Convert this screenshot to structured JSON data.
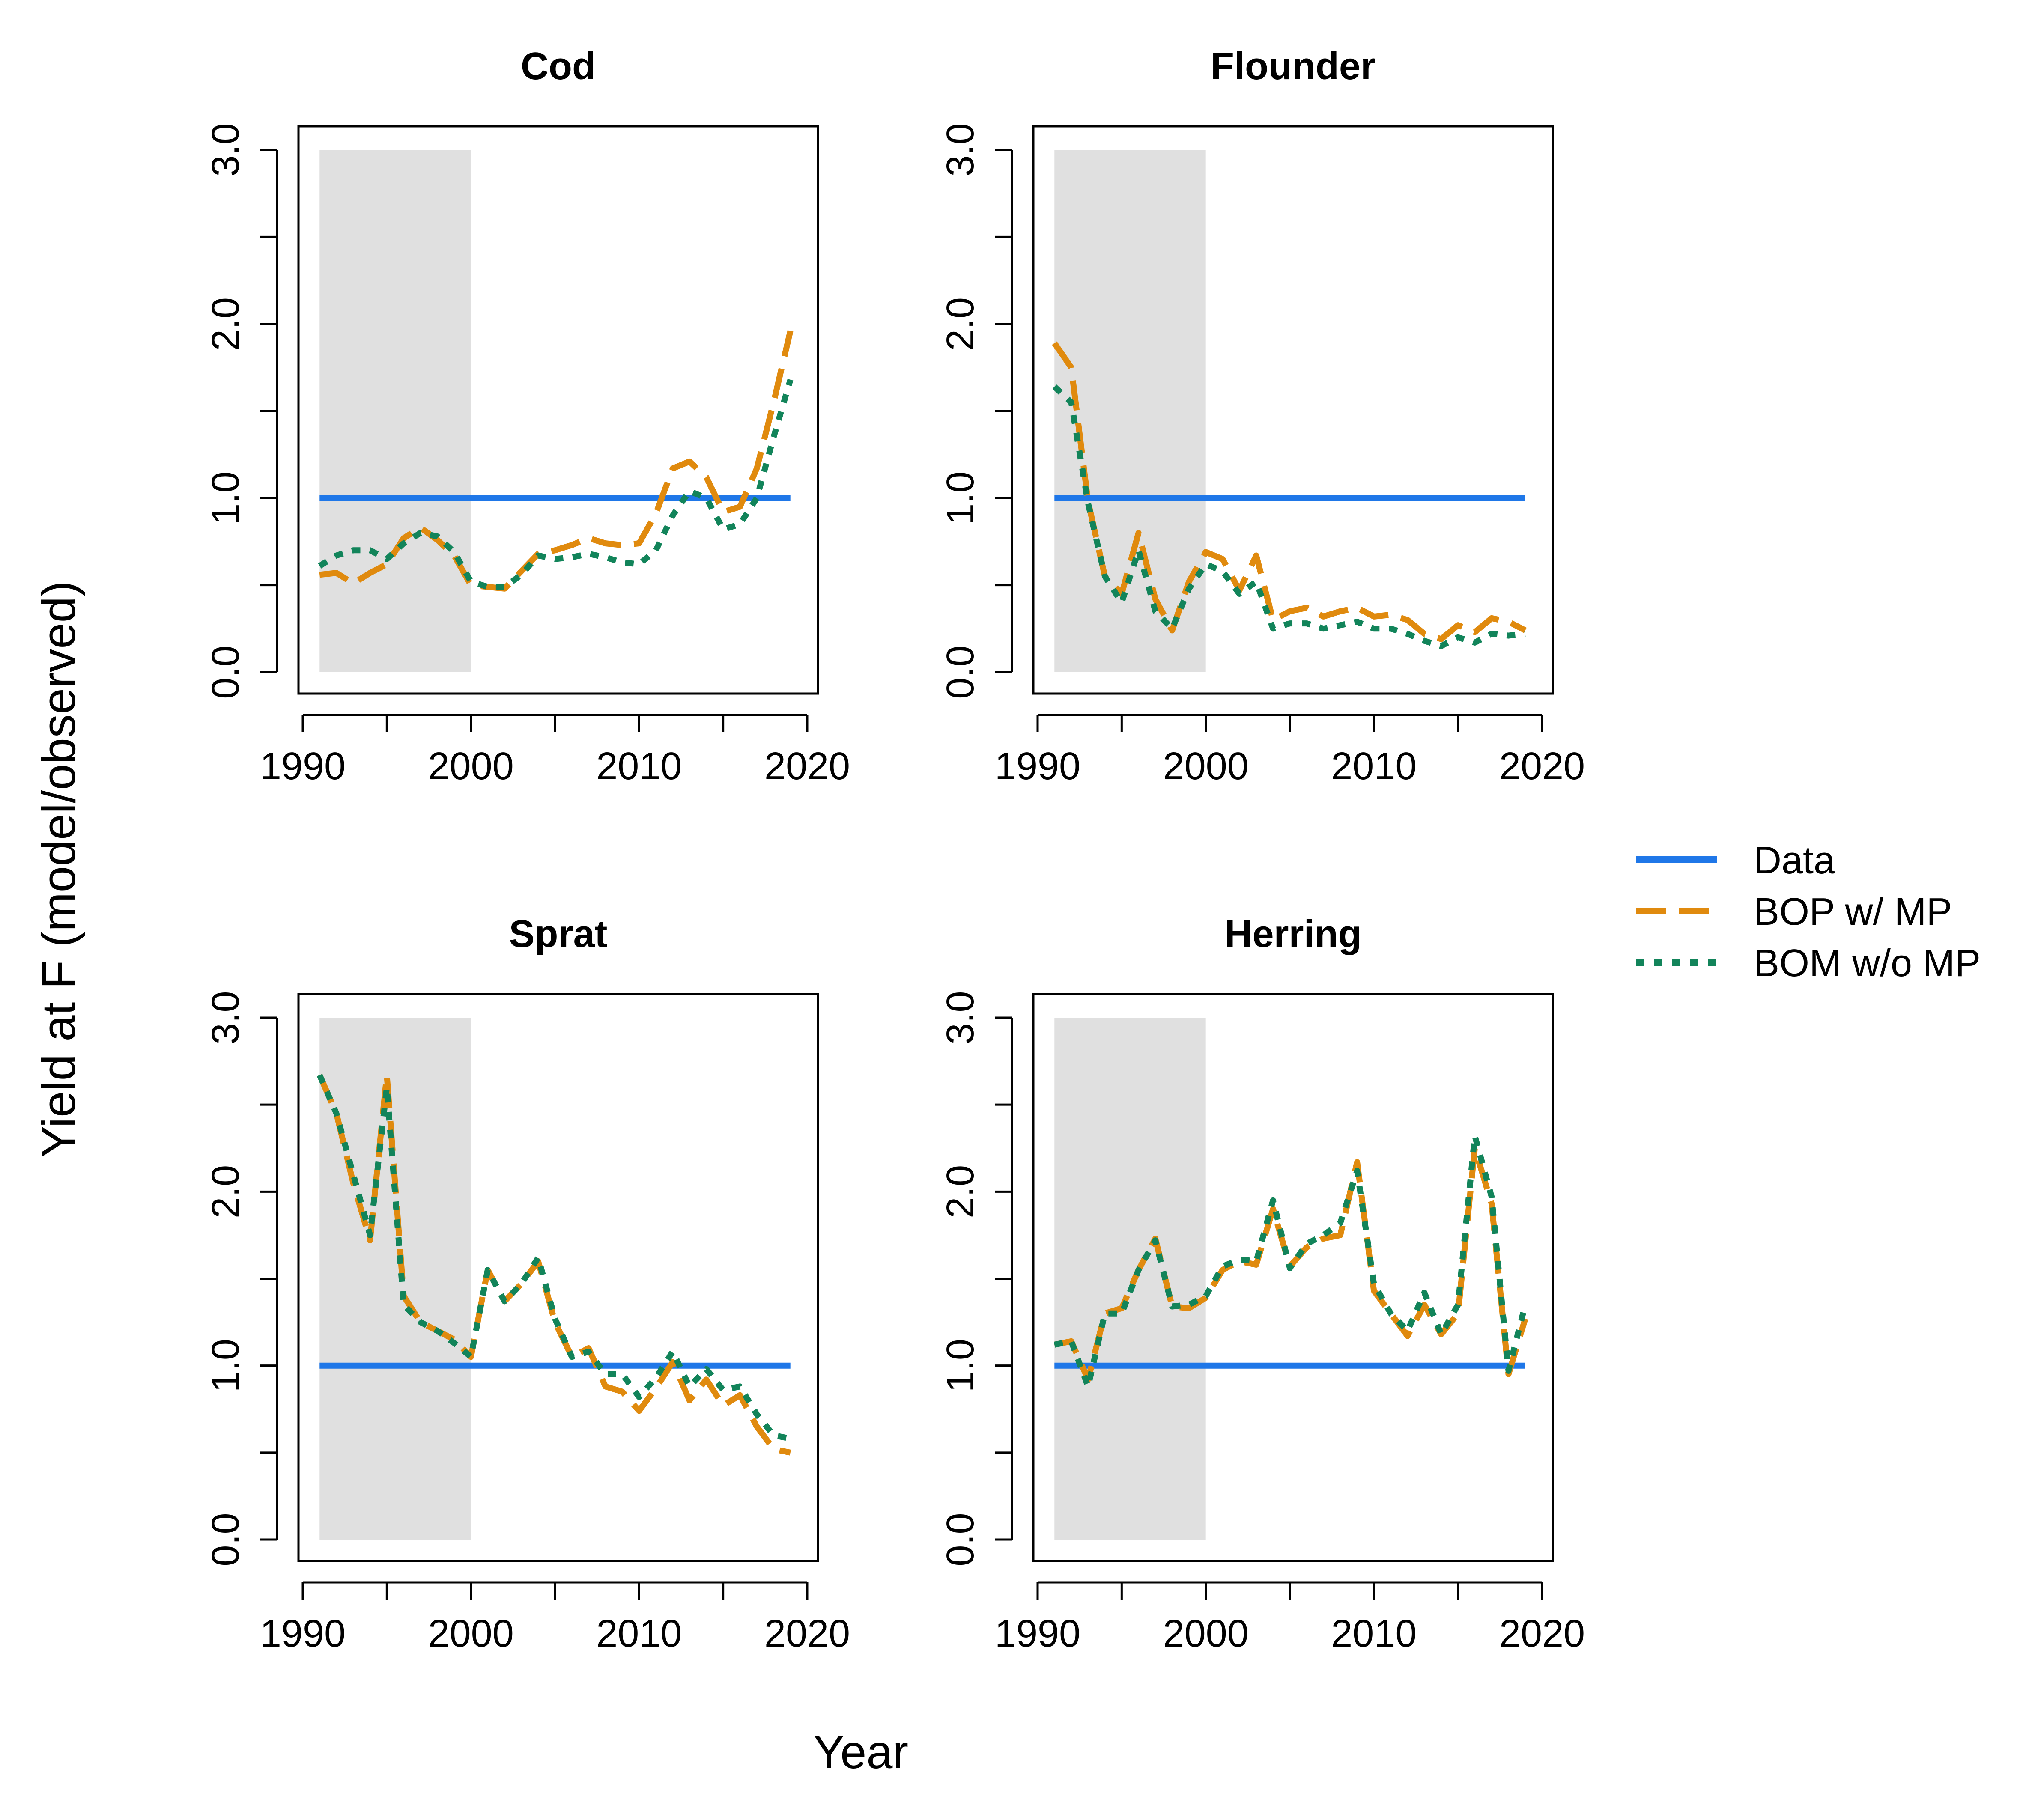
{
  "figure": {
    "ylabel": "Yield at F (model/observed)",
    "xlabel": "Year"
  },
  "legend": {
    "placement": "right",
    "entries": [
      {
        "label": "Data",
        "style": "solid",
        "color": "#1f77e8"
      },
      {
        "label": "BOP w/ MP",
        "style": "dashed",
        "color": "#e08a0e"
      },
      {
        "label": "BOM w/o MP",
        "style": "dotted",
        "color": "#12845a"
      }
    ]
  },
  "chart_data": [
    {
      "type": "line",
      "title": "Cod",
      "xlim": [
        1990,
        2020
      ],
      "ylim": [
        0,
        3
      ],
      "xticks": [
        "1990",
        "2000",
        "2010",
        "2020"
      ],
      "yticks": [
        "0.0",
        "1.0",
        "2.0",
        "3.0"
      ],
      "shaded_region": [
        1991,
        2000
      ],
      "x": [
        1991,
        1992,
        1993,
        1994,
        1995,
        1996,
        1997,
        1998,
        1999,
        2000,
        2001,
        2002,
        2003,
        2004,
        2005,
        2006,
        2007,
        2008,
        2009,
        2010,
        2011,
        2012,
        2013,
        2014,
        2015,
        2016,
        2017,
        2018,
        2019
      ],
      "series": [
        {
          "name": "Data",
          "values": [
            1,
            1,
            1,
            1,
            1,
            1,
            1,
            1,
            1,
            1,
            1,
            1,
            1,
            1,
            1,
            1,
            1,
            1,
            1,
            1,
            1,
            1,
            1,
            1,
            1,
            1,
            1,
            1,
            1
          ]
        },
        {
          "name": "BOP w/ MP",
          "values": [
            0.56,
            0.57,
            0.51,
            0.57,
            0.62,
            0.77,
            0.83,
            0.76,
            0.67,
            0.5,
            0.49,
            0.48,
            0.58,
            0.68,
            0.7,
            0.73,
            0.77,
            0.74,
            0.73,
            0.74,
            0.91,
            1.17,
            1.21,
            1.12,
            0.92,
            0.95,
            1.17,
            1.55,
            1.96
          ]
        },
        {
          "name": "BOM w/o MP",
          "values": [
            0.61,
            0.67,
            0.7,
            0.7,
            0.65,
            0.74,
            0.8,
            0.78,
            0.69,
            0.52,
            0.49,
            0.49,
            0.56,
            0.67,
            0.65,
            0.66,
            0.68,
            0.66,
            0.63,
            0.62,
            0.7,
            0.9,
            1.04,
            1.0,
            0.82,
            0.85,
            1.0,
            1.35,
            1.68
          ]
        }
      ]
    },
    {
      "type": "line",
      "title": "Flounder",
      "xlim": [
        1990,
        2020
      ],
      "ylim": [
        0,
        3
      ],
      "xticks": [
        "1990",
        "2000",
        "2010",
        "2020"
      ],
      "yticks": [
        "0.0",
        "1.0",
        "2.0",
        "3.0"
      ],
      "shaded_region": [
        1991,
        2000
      ],
      "x": [
        1991,
        1992,
        1993,
        1994,
        1995,
        1996,
        1997,
        1998,
        1999,
        2000,
        2001,
        2002,
        2003,
        2004,
        2005,
        2006,
        2007,
        2008,
        2009,
        2010,
        2011,
        2012,
        2013,
        2014,
        2015,
        2016,
        2017,
        2018,
        2019
      ],
      "series": [
        {
          "name": "Data",
          "values": [
            1,
            1,
            1,
            1,
            1,
            1,
            1,
            1,
            1,
            1,
            1,
            1,
            1,
            1,
            1,
            1,
            1,
            1,
            1,
            1,
            1,
            1,
            1,
            1,
            1,
            1,
            1,
            1,
            1
          ]
        },
        {
          "name": "BOP w/ MP",
          "values": [
            1.89,
            1.75,
            0.98,
            0.55,
            0.45,
            0.8,
            0.42,
            0.24,
            0.52,
            0.69,
            0.65,
            0.47,
            0.67,
            0.3,
            0.35,
            0.37,
            0.32,
            0.35,
            0.37,
            0.32,
            0.33,
            0.3,
            0.22,
            0.19,
            0.27,
            0.23,
            0.31,
            0.29,
            0.24
          ]
        },
        {
          "name": "BOM w/o MP",
          "values": [
            1.64,
            1.55,
            0.97,
            0.55,
            0.4,
            0.7,
            0.35,
            0.25,
            0.48,
            0.62,
            0.58,
            0.45,
            0.52,
            0.25,
            0.28,
            0.28,
            0.25,
            0.27,
            0.29,
            0.25,
            0.25,
            0.22,
            0.18,
            0.15,
            0.2,
            0.17,
            0.22,
            0.21,
            0.22
          ]
        }
      ]
    },
    {
      "type": "line",
      "title": "Sprat",
      "xlim": [
        1990,
        2020
      ],
      "ylim": [
        0,
        3
      ],
      "xticks": [
        "1990",
        "2000",
        "2010",
        "2020"
      ],
      "yticks": [
        "0.0",
        "1.0",
        "2.0",
        "3.0"
      ],
      "shaded_region": [
        1991,
        2000
      ],
      "x": [
        1991,
        1992,
        1993,
        1994,
        1995,
        1996,
        1997,
        1998,
        1999,
        2000,
        2001,
        2002,
        2003,
        2004,
        2005,
        2006,
        2007,
        2008,
        2009,
        2010,
        2011,
        2012,
        2013,
        2014,
        2015,
        2016,
        2017,
        2018,
        2019
      ],
      "series": [
        {
          "name": "Data",
          "values": [
            1,
            1,
            1,
            1,
            1,
            1,
            1,
            1,
            1,
            1,
            1,
            1,
            1,
            1,
            1,
            1,
            1,
            1,
            1,
            1,
            1,
            1,
            1,
            1,
            1,
            1,
            1,
            1,
            1
          ]
        },
        {
          "name": "BOP w/ MP",
          "values": [
            2.67,
            2.45,
            2.05,
            1.72,
            2.67,
            1.4,
            1.25,
            1.2,
            1.15,
            1.05,
            1.55,
            1.37,
            1.47,
            1.6,
            1.25,
            1.05,
            1.1,
            0.88,
            0.85,
            0.74,
            0.87,
            1.02,
            0.8,
            0.92,
            0.77,
            0.83,
            0.65,
            0.52,
            0.5
          ]
        },
        {
          "name": "BOM w/o MP",
          "values": [
            2.67,
            2.45,
            2.1,
            1.75,
            2.6,
            1.35,
            1.25,
            1.2,
            1.13,
            1.05,
            1.55,
            1.37,
            1.47,
            1.62,
            1.27,
            1.05,
            1.08,
            0.95,
            0.95,
            0.82,
            0.93,
            1.08,
            0.88,
            0.98,
            0.86,
            0.88,
            0.72,
            0.6,
            0.58
          ]
        }
      ]
    },
    {
      "type": "line",
      "title": "Herring",
      "xlim": [
        1990,
        2020
      ],
      "ylim": [
        0,
        3
      ],
      "xticks": [
        "1990",
        "2000",
        "2010",
        "2020"
      ],
      "yticks": [
        "0.0",
        "1.0",
        "2.0",
        "3.0"
      ],
      "shaded_region": [
        1991,
        2000
      ],
      "x": [
        1991,
        1992,
        1993,
        1994,
        1995,
        1996,
        1997,
        1998,
        1999,
        2000,
        2001,
        2002,
        2003,
        2004,
        2005,
        2006,
        2007,
        2008,
        2009,
        2010,
        2011,
        2012,
        2013,
        2014,
        2015,
        2016,
        2017,
        2018,
        2019
      ],
      "series": [
        {
          "name": "Data",
          "values": [
            1,
            1,
            1,
            1,
            1,
            1,
            1,
            1,
            1,
            1,
            1,
            1,
            1,
            1,
            1,
            1,
            1,
            1,
            1,
            1,
            1,
            1,
            1,
            1,
            1,
            1,
            1,
            1,
            1
          ]
        },
        {
          "name": "BOP w/ MP",
          "values": [
            1.12,
            1.14,
            0.92,
            1.3,
            1.33,
            1.55,
            1.73,
            1.34,
            1.33,
            1.39,
            1.55,
            1.6,
            1.58,
            1.9,
            1.57,
            1.68,
            1.73,
            1.75,
            2.17,
            1.43,
            1.3,
            1.17,
            1.35,
            1.18,
            1.3,
            2.25,
            1.93,
            0.95,
            1.27
          ]
        },
        {
          "name": "BOM w/o MP",
          "values": [
            1.12,
            1.14,
            0.88,
            1.3,
            1.3,
            1.55,
            1.72,
            1.34,
            1.35,
            1.4,
            1.57,
            1.61,
            1.6,
            1.95,
            1.56,
            1.7,
            1.75,
            1.82,
            2.12,
            1.47,
            1.3,
            1.2,
            1.42,
            1.18,
            1.35,
            2.32,
            1.97,
            0.97,
            1.35
          ]
        }
      ]
    }
  ]
}
